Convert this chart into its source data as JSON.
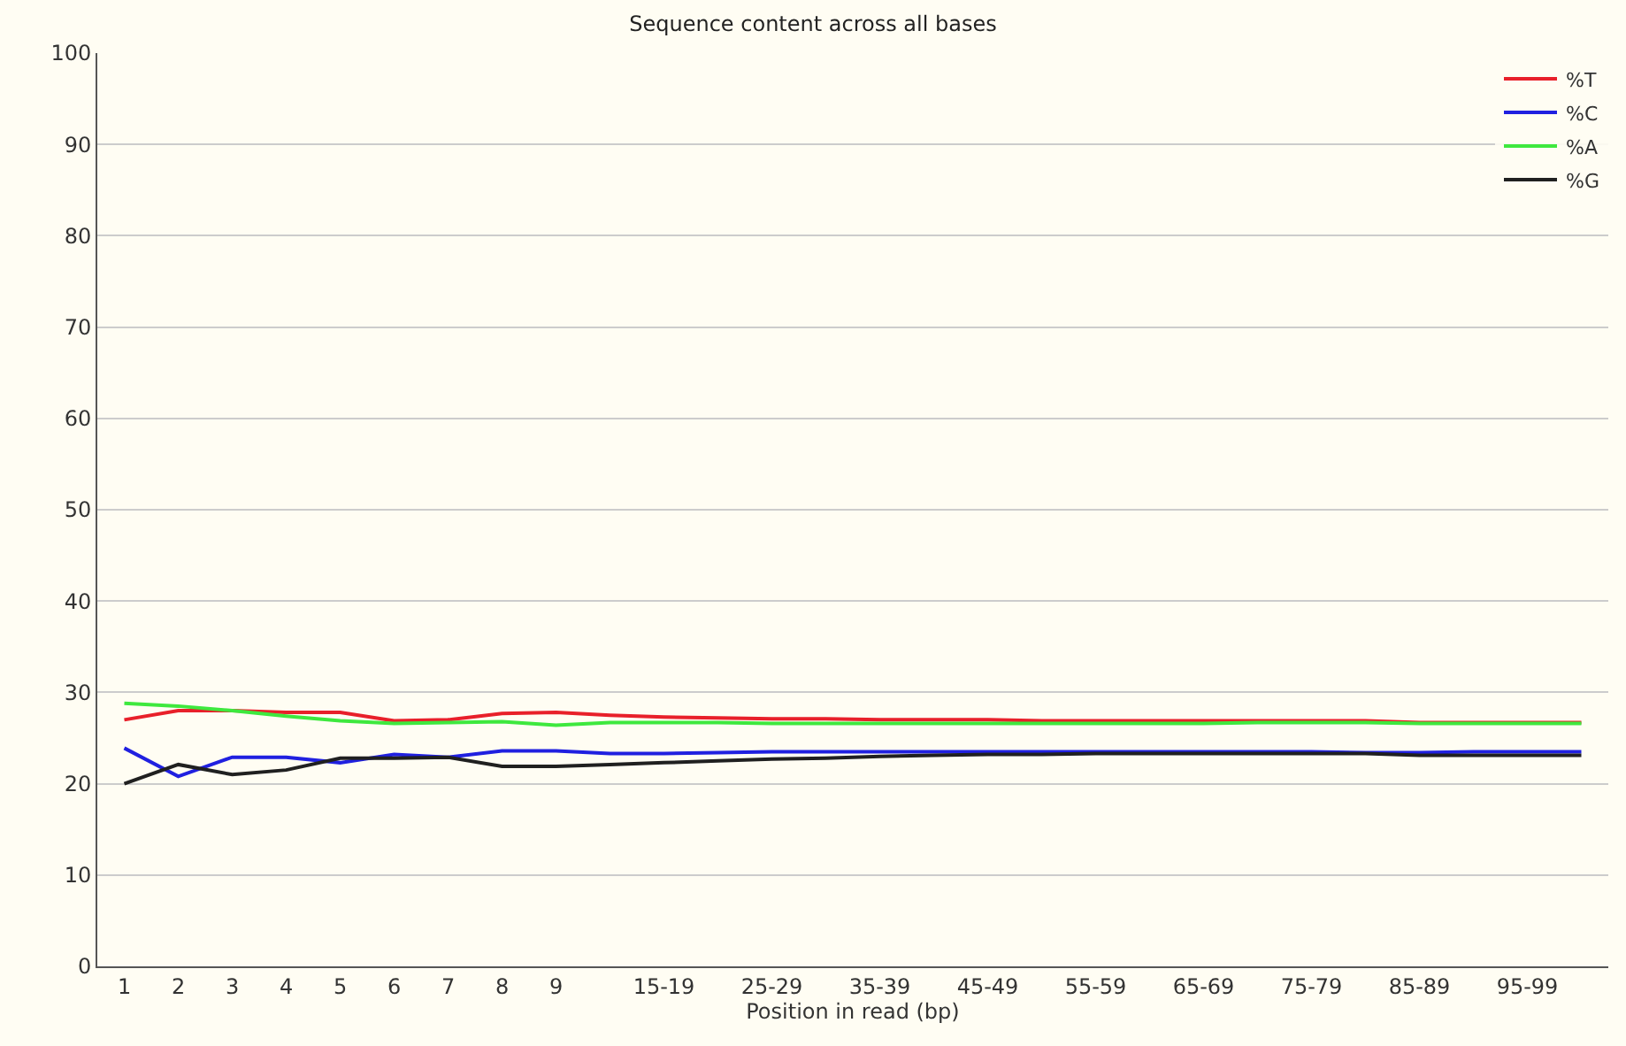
{
  "chart_data": {
    "type": "line",
    "title": "Sequence content across all bases",
    "xlabel": "Position in read (bp)",
    "categories": [
      "1",
      "2",
      "3",
      "4",
      "5",
      "6",
      "7",
      "8",
      "9",
      null,
      "15-19",
      null,
      "25-29",
      null,
      "35-39",
      null,
      "45-49",
      null,
      "55-59",
      null,
      "65-69",
      null,
      "75-79",
      null,
      "85-89",
      null,
      "95-99",
      null
    ],
    "series": [
      {
        "name": "%T",
        "color": "#e8202a",
        "values": [
          27,
          28,
          28,
          27.8,
          27.8,
          26.9,
          27,
          27.7,
          27.8,
          27.5,
          27.3,
          27.2,
          27.1,
          27.1,
          27,
          27,
          27,
          26.9,
          26.9,
          26.9,
          26.9,
          26.9,
          26.9,
          26.9,
          26.7,
          26.7,
          26.7,
          26.7
        ]
      },
      {
        "name": "%C",
        "color": "#2020e0",
        "values": [
          23.9,
          20.8,
          22.9,
          22.9,
          22.3,
          23.2,
          22.9,
          23.6,
          23.6,
          23.3,
          23.3,
          23.4,
          23.5,
          23.5,
          23.5,
          23.5,
          23.5,
          23.5,
          23.5,
          23.5,
          23.5,
          23.5,
          23.5,
          23.4,
          23.4,
          23.5,
          23.5,
          23.5
        ]
      },
      {
        "name": "%A",
        "color": "#3ee83e",
        "values": [
          28.8,
          28.5,
          28,
          27.4,
          26.9,
          26.6,
          26.7,
          26.8,
          26.4,
          26.7,
          26.7,
          26.7,
          26.6,
          26.6,
          26.6,
          26.6,
          26.6,
          26.6,
          26.6,
          26.6,
          26.6,
          26.7,
          26.7,
          26.7,
          26.6,
          26.6,
          26.6,
          26.6
        ]
      },
      {
        "name": "%G",
        "color": "#202020",
        "values": [
          20,
          22.1,
          21,
          21.5,
          22.8,
          22.8,
          22.9,
          21.9,
          21.9,
          22.1,
          22.3,
          22.5,
          22.7,
          22.8,
          23,
          23.1,
          23.2,
          23.2,
          23.3,
          23.3,
          23.3,
          23.3,
          23.3,
          23.3,
          23.1,
          23.1,
          23.1,
          23.1
        ]
      }
    ],
    "ylim": [
      0,
      100
    ],
    "yticks": [
      0,
      10,
      20,
      30,
      40,
      50,
      60,
      70,
      80,
      90,
      100
    ],
    "grid": "y",
    "legend": "top right",
    "marker": "none",
    "line_style": "solid"
  }
}
